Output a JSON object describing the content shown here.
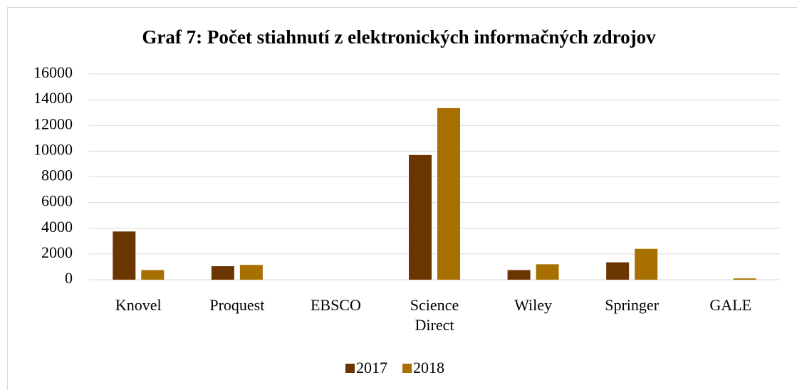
{
  "chart_data": {
    "type": "bar",
    "title": "Graf 7: Počet stiahnutí z elektronických informačných zdrojov",
    "categories": [
      "Knovel",
      "Proquest",
      "EBSCO",
      "Science Direct",
      "Wiley",
      "Springer",
      "GALE"
    ],
    "series": [
      {
        "name": "2017",
        "color": "#6b3500",
        "values": [
          3750,
          1050,
          0,
          9700,
          750,
          1350,
          0
        ]
      },
      {
        "name": "2018",
        "color": "#a87000",
        "values": [
          750,
          1150,
          0,
          13350,
          1200,
          2400,
          100
        ]
      }
    ],
    "ylim": [
      0,
      16000
    ],
    "yticks": [
      0,
      2000,
      4000,
      6000,
      8000,
      10000,
      12000,
      14000,
      16000
    ],
    "grid": true,
    "legend": "bottom"
  }
}
